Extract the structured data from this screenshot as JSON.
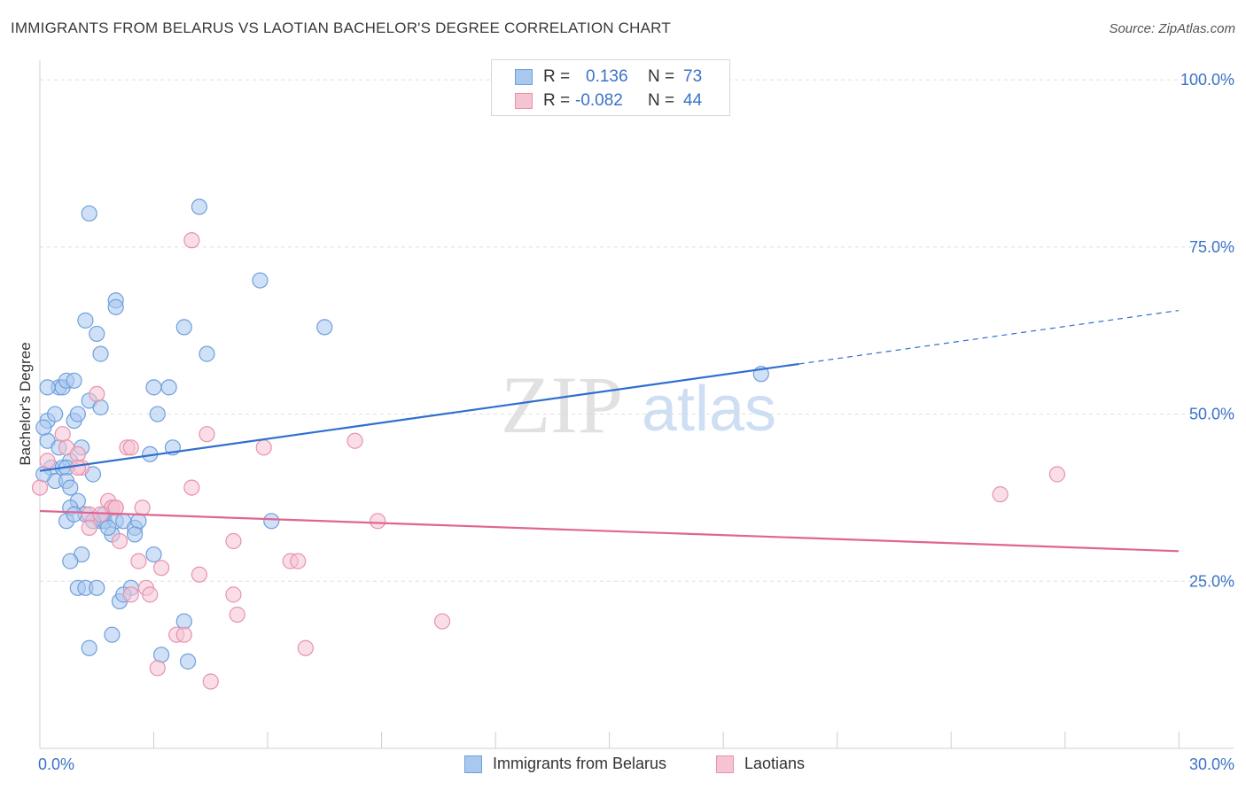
{
  "title": "IMMIGRANTS FROM BELARUS VS LAOTIAN BACHELOR'S DEGREE CORRELATION CHART",
  "source": "Source: ZipAtlas.com",
  "watermark": {
    "zip": "ZIP",
    "atlas": "atlas"
  },
  "legend": {
    "r_label": "R =",
    "n_label": "N =",
    "series": [
      {
        "r": "0.136",
        "n": "73"
      },
      {
        "r": "-0.082",
        "n": "44"
      }
    ]
  },
  "colors": {
    "belarus_fill": "#a9c8f0",
    "belarus_stroke": "#6f9fdc",
    "belarus_line": "#2f6fcf",
    "laotian_fill": "#f6c3d3",
    "laotian_stroke": "#e892ad",
    "laotian_line": "#e06592",
    "axis_text": "#3a72c8",
    "grid": "#e0e0e0"
  },
  "chart_data": {
    "type": "scatter",
    "title": "IMMIGRANTS FROM BELARUS VS LAOTIAN BACHELOR'S DEGREE CORRELATION CHART",
    "xlabel": "",
    "ylabel": "Bachelor's Degree",
    "xlim": [
      0,
      30
    ],
    "ylim": [
      0,
      102
    ],
    "x_tick_labels": [
      "0.0%",
      "30.0%"
    ],
    "y_ticks": [
      25,
      50,
      75,
      100
    ],
    "y_tick_labels": [
      "25.0%",
      "50.0%",
      "75.0%",
      "100.0%"
    ],
    "series": [
      {
        "name": "Immigrants from Belarus",
        "r": 0.136,
        "n": 73,
        "trend": {
          "x0": 0,
          "y0": 41.5,
          "x1": 20,
          "y1": 57.5,
          "dash_to_x": 30,
          "dash_to_y": 65.5
        },
        "points": [
          [
            0.2,
            46
          ],
          [
            0.2,
            49
          ],
          [
            0.1,
            48
          ],
          [
            0.3,
            42
          ],
          [
            0.4,
            50
          ],
          [
            0.5,
            54
          ],
          [
            0.6,
            54
          ],
          [
            0.2,
            54
          ],
          [
            0.7,
            55
          ],
          [
            0.9,
            55
          ],
          [
            0.8,
            43
          ],
          [
            0.5,
            45
          ],
          [
            0.6,
            42
          ],
          [
            0.7,
            42
          ],
          [
            0.9,
            49
          ],
          [
            1.0,
            50
          ],
          [
            1.1,
            45
          ],
          [
            1.3,
            52
          ],
          [
            1.6,
            51
          ],
          [
            1.4,
            41
          ],
          [
            0.4,
            40
          ],
          [
            0.7,
            40
          ],
          [
            0.8,
            39
          ],
          [
            1.0,
            37
          ],
          [
            0.8,
            36
          ],
          [
            1.2,
            35
          ],
          [
            1.6,
            34
          ],
          [
            1.7,
            34
          ],
          [
            1.9,
            36
          ],
          [
            1.7,
            35
          ],
          [
            2.0,
            34
          ],
          [
            2.2,
            34
          ],
          [
            2.5,
            33
          ],
          [
            2.6,
            34
          ],
          [
            1.9,
            32
          ],
          [
            2.5,
            32
          ],
          [
            0.7,
            34
          ],
          [
            1.1,
            29
          ],
          [
            0.8,
            28
          ],
          [
            3.0,
            29
          ],
          [
            1.0,
            24
          ],
          [
            1.2,
            24
          ],
          [
            1.5,
            24
          ],
          [
            2.4,
            24
          ],
          [
            2.1,
            22
          ],
          [
            1.3,
            15
          ],
          [
            1.9,
            17
          ],
          [
            3.2,
            14
          ],
          [
            3.9,
            13
          ],
          [
            3.8,
            19
          ],
          [
            1.2,
            64
          ],
          [
            1.6,
            59
          ],
          [
            1.5,
            62
          ],
          [
            2.0,
            67
          ],
          [
            2.0,
            66
          ],
          [
            3.8,
            63
          ],
          [
            4.4,
            59
          ],
          [
            1.3,
            80
          ],
          [
            4.2,
            81
          ],
          [
            5.8,
            70
          ],
          [
            7.5,
            63
          ],
          [
            3.0,
            54
          ],
          [
            3.4,
            54
          ],
          [
            3.1,
            50
          ],
          [
            3.5,
            45
          ],
          [
            2.9,
            44
          ],
          [
            6.1,
            34
          ],
          [
            19.0,
            56
          ],
          [
            0.1,
            41
          ],
          [
            1.4,
            34
          ],
          [
            1.8,
            33
          ],
          [
            0.9,
            35
          ],
          [
            2.2,
            23
          ]
        ]
      },
      {
        "name": "Laotians",
        "r": -0.082,
        "n": 44,
        "trend": {
          "x0": 0,
          "y0": 35.5,
          "x1": 30,
          "y1": 29.5
        },
        "points": [
          [
            0.0,
            39
          ],
          [
            0.2,
            43
          ],
          [
            0.6,
            47
          ],
          [
            0.7,
            45
          ],
          [
            1.0,
            44
          ],
          [
            1.1,
            42
          ],
          [
            1.0,
            42
          ],
          [
            1.5,
            53
          ],
          [
            2.3,
            45
          ],
          [
            2.4,
            45
          ],
          [
            1.3,
            35
          ],
          [
            1.8,
            37
          ],
          [
            1.9,
            36
          ],
          [
            2.0,
            36
          ],
          [
            2.7,
            36
          ],
          [
            1.6,
            35
          ],
          [
            1.3,
            33
          ],
          [
            2.1,
            31
          ],
          [
            2.6,
            28
          ],
          [
            3.2,
            27
          ],
          [
            2.4,
            23
          ],
          [
            2.8,
            24
          ],
          [
            2.9,
            23
          ],
          [
            3.6,
            17
          ],
          [
            3.8,
            17
          ],
          [
            3.1,
            12
          ],
          [
            4.0,
            39
          ],
          [
            4.4,
            47
          ],
          [
            4.2,
            26
          ],
          [
            5.1,
            31
          ],
          [
            5.1,
            23
          ],
          [
            5.2,
            20
          ],
          [
            5.9,
            45
          ],
          [
            6.6,
            28
          ],
          [
            6.8,
            28
          ],
          [
            7.0,
            15
          ],
          [
            4.5,
            10
          ],
          [
            8.3,
            46
          ],
          [
            8.9,
            34
          ],
          [
            10.6,
            19
          ],
          [
            4.0,
            76
          ],
          [
            25.3,
            38
          ],
          [
            26.8,
            41
          ],
          [
            2.0,
            36
          ]
        ]
      }
    ]
  }
}
